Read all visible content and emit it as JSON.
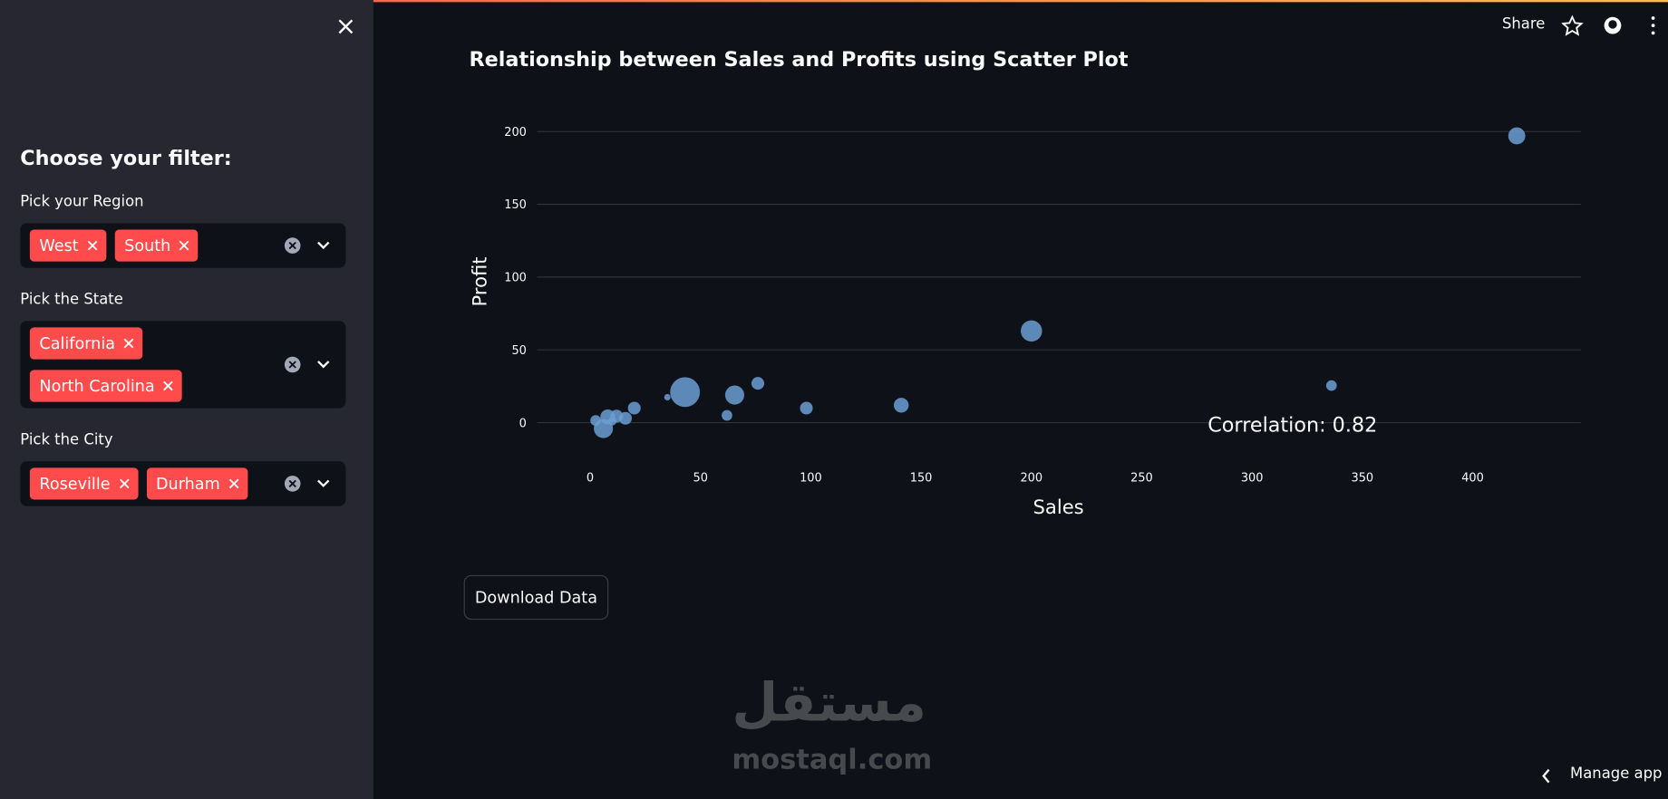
{
  "header": {
    "share": "Share"
  },
  "sidebar": {
    "heading": "Choose your filter:",
    "filters": [
      {
        "label": "Pick your Region",
        "selected": [
          "West",
          "South"
        ]
      },
      {
        "label": "Pick the State",
        "selected": [
          "California",
          "North Carolina"
        ]
      },
      {
        "label": "Pick the City",
        "selected": [
          "Roseville",
          "Durham"
        ]
      }
    ]
  },
  "chart_data": {
    "type": "scatter",
    "title": "Relationship between Sales and Profits using Scatter Plot",
    "x_label": "Sales",
    "y_label": "Profit",
    "annotation": "Correlation: 0.82",
    "x": [
      420,
      200,
      336,
      43,
      65.5,
      76,
      98,
      141,
      62,
      35,
      20,
      6,
      2.5,
      8,
      12,
      16,
      10
    ],
    "series": [
      {
        "name": "Profit",
        "color": "#6a9fd4",
        "values": [
          197,
          63,
          25.5,
          21,
          19,
          27,
          10,
          12,
          5,
          17.5,
          10,
          -4,
          1.5,
          4,
          4.5,
          3,
          1
        ],
        "sizes": [
          16,
          20,
          10,
          28,
          18,
          12,
          12,
          14,
          10,
          6,
          12,
          18,
          10,
          14,
          12,
          12,
          8
        ]
      }
    ],
    "xlim": [
      -24,
      449
    ],
    "ylim": [
      -20,
      210
    ],
    "xticks": [
      0,
      50,
      100,
      150,
      200,
      250,
      300,
      350,
      400
    ],
    "yticks": [
      0,
      50,
      100,
      150,
      200
    ],
    "grid": true
  },
  "button": "Download Data",
  "footer": {
    "manage": "Manage app"
  },
  "watermark": {
    "arabic": "مستقل",
    "latin": "mostaql.com"
  }
}
